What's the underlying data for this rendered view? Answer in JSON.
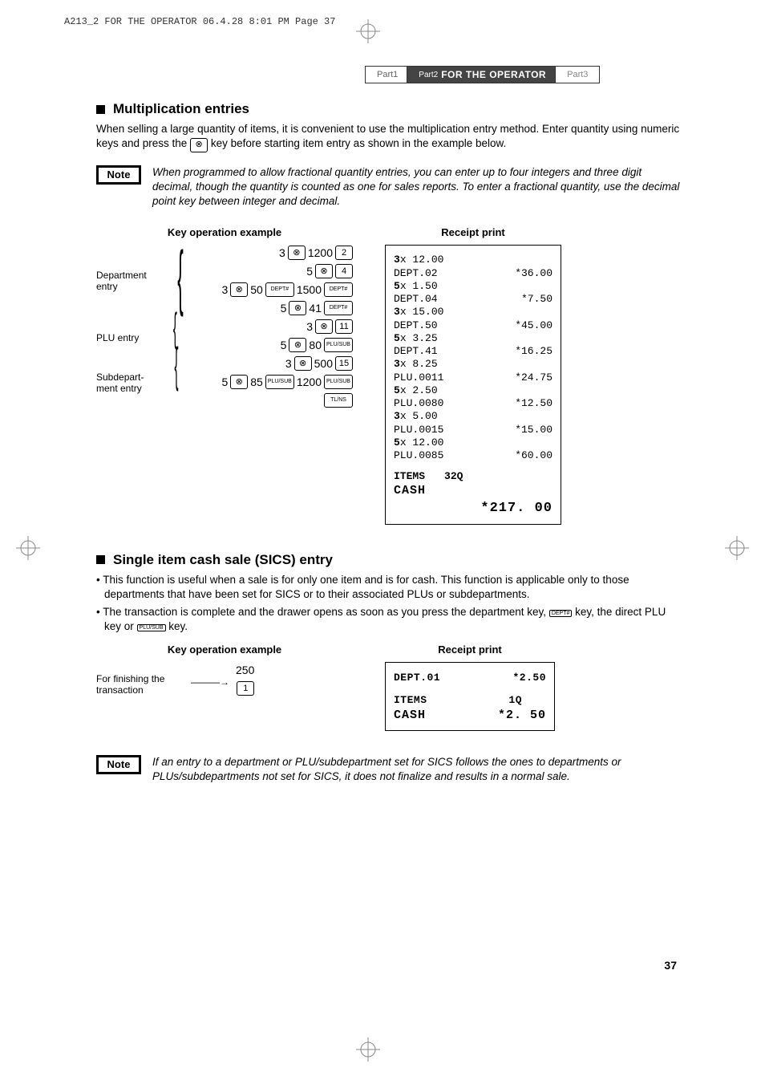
{
  "print_header": "A213_2 FOR THE OPERATOR  06.4.28 8:01 PM  Page 37",
  "tabs": {
    "part1": "Part1",
    "part2_label": "Part2",
    "part2_title": "FOR THE OPERATOR",
    "part3": "Part3"
  },
  "section_mult": {
    "title": "Multiplication entries",
    "para": "When selling a large quantity of items, it is convenient to use the multiplication entry method.  Enter quantity using numeric keys and press the",
    "para2": "key before starting item entry as shown in the example below.",
    "mult_key_glyph": "⊗"
  },
  "note1": {
    "label": "Note",
    "text": "When programmed to allow fractional quantity entries, you can enter up to four integers and three digit decimal, though the quantity is counted as one for sales reports. To enter a fractional quantity, use the decimal point key between integer and decimal."
  },
  "key_op_title": "Key operation example",
  "receipt_title": "Receipt print",
  "key_labels": {
    "dept": "Department entry",
    "plu": "PLU entry",
    "sub": "Subdepart-\nment entry"
  },
  "key_lines": [
    {
      "pre": "3",
      "mult": true,
      "mid": "1200",
      "btn": "2",
      "btnclass": ""
    },
    {
      "pre": "5",
      "mult": true,
      "mid": "",
      "btn": "4",
      "btnclass": ""
    },
    {
      "pre": "3",
      "mult": true,
      "mid": "50",
      "btn": "DEPT#",
      "btnclass": "w",
      "mid2": "1500",
      "btn2": "DEPT#",
      "btn2class": "w"
    },
    {
      "pre": "5",
      "mult": true,
      "mid": "41",
      "btn": "DEPT#",
      "btnclass": "w"
    },
    {
      "pre": "3",
      "mult": true,
      "mid": "",
      "btn": "11",
      "btnclass": ""
    },
    {
      "pre": "5",
      "mult": true,
      "mid": "80",
      "btn": "PLU/SUB",
      "btnclass": "w"
    },
    {
      "pre": "3",
      "mult": true,
      "mid": "500",
      "btn": "15",
      "btnclass": ""
    },
    {
      "pre": "5",
      "mult": true,
      "mid": "85",
      "btn": "PLU/SUB",
      "btnclass": "w",
      "mid2": "1200",
      "btn2": "PLU/SUB",
      "btn2class": "w"
    },
    {
      "trailing": "TL/NS"
    }
  ],
  "receipt1": {
    "lines": [
      {
        "l": "3x 12.00",
        "r": "",
        "bold_l": true
      },
      {
        "l": "DEPT.02",
        "r": "*36.00"
      },
      {
        "l": "5x 1.50",
        "r": "",
        "bold_l": true
      },
      {
        "l": "DEPT.04",
        "r": "*7.50"
      },
      {
        "l": "3x 15.00",
        "r": "",
        "bold_l": true
      },
      {
        "l": "DEPT.50",
        "r": "*45.00"
      },
      {
        "l": "5x 3.25",
        "r": "",
        "bold_l": true
      },
      {
        "l": "DEPT.41",
        "r": "*16.25"
      },
      {
        "l": "3x 8.25",
        "r": "",
        "bold_l": true
      },
      {
        "l": "PLU.0011",
        "r": "*24.75"
      },
      {
        "l": "5x 2.50",
        "r": "",
        "bold_l": true
      },
      {
        "l": "PLU.0080",
        "r": "*12.50"
      },
      {
        "l": "3x 5.00",
        "r": "",
        "bold_l": true
      },
      {
        "l": "PLU.0015",
        "r": "*15.00"
      },
      {
        "l": "5x 12.00",
        "r": "",
        "bold_l": true
      },
      {
        "l": "PLU.0085",
        "r": "*60.00"
      }
    ],
    "items_label": "ITEMS",
    "items_qty": "32Q",
    "cash_label": "CASH",
    "total": "*217. 00"
  },
  "section_sics": {
    "title": "Single item cash sale (SICS) entry",
    "bullet1": "• This function is useful when a sale is for only one item and is for cash.  This function is applicable only to those departments that have been set for SICS or to their associated PLUs or subdepartments.",
    "bullet2a": "• The transaction is complete and the drawer opens as soon as you press the department key,",
    "bullet2b": "key, the direct PLU key or",
    "bullet2c": "key.",
    "key_dept": "DEPT#",
    "key_plusub": "PLU/SUB"
  },
  "key_op2": {
    "label": "For finishing the transaction",
    "amount": "250",
    "btn": "1"
  },
  "receipt2": {
    "line1_l": "DEPT.01",
    "line1_r": "*2.50",
    "items_label": "ITEMS",
    "items_qty": "1Q",
    "cash_label": "CASH",
    "cash_amt": "*2. 50"
  },
  "note2": {
    "label": "Note",
    "text": "If an entry to a department or PLU/subdepartment set for SICS follows the ones to departments or PLUs/subdepartments not set for SICS, it does not finalize and results in a normal sale."
  },
  "page_number": "37"
}
